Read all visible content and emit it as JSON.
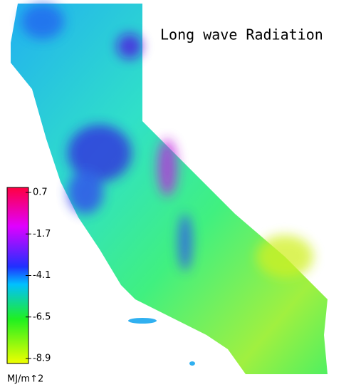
{
  "title": "Long wave Radiation",
  "colorbar": {
    "lim": [
      -8.9,
      0.7
    ],
    "ticks": [
      0.7,
      -1.7,
      -4.1,
      -6.5,
      -8.9
    ],
    "unit": "MJ/m↑2"
  }
}
